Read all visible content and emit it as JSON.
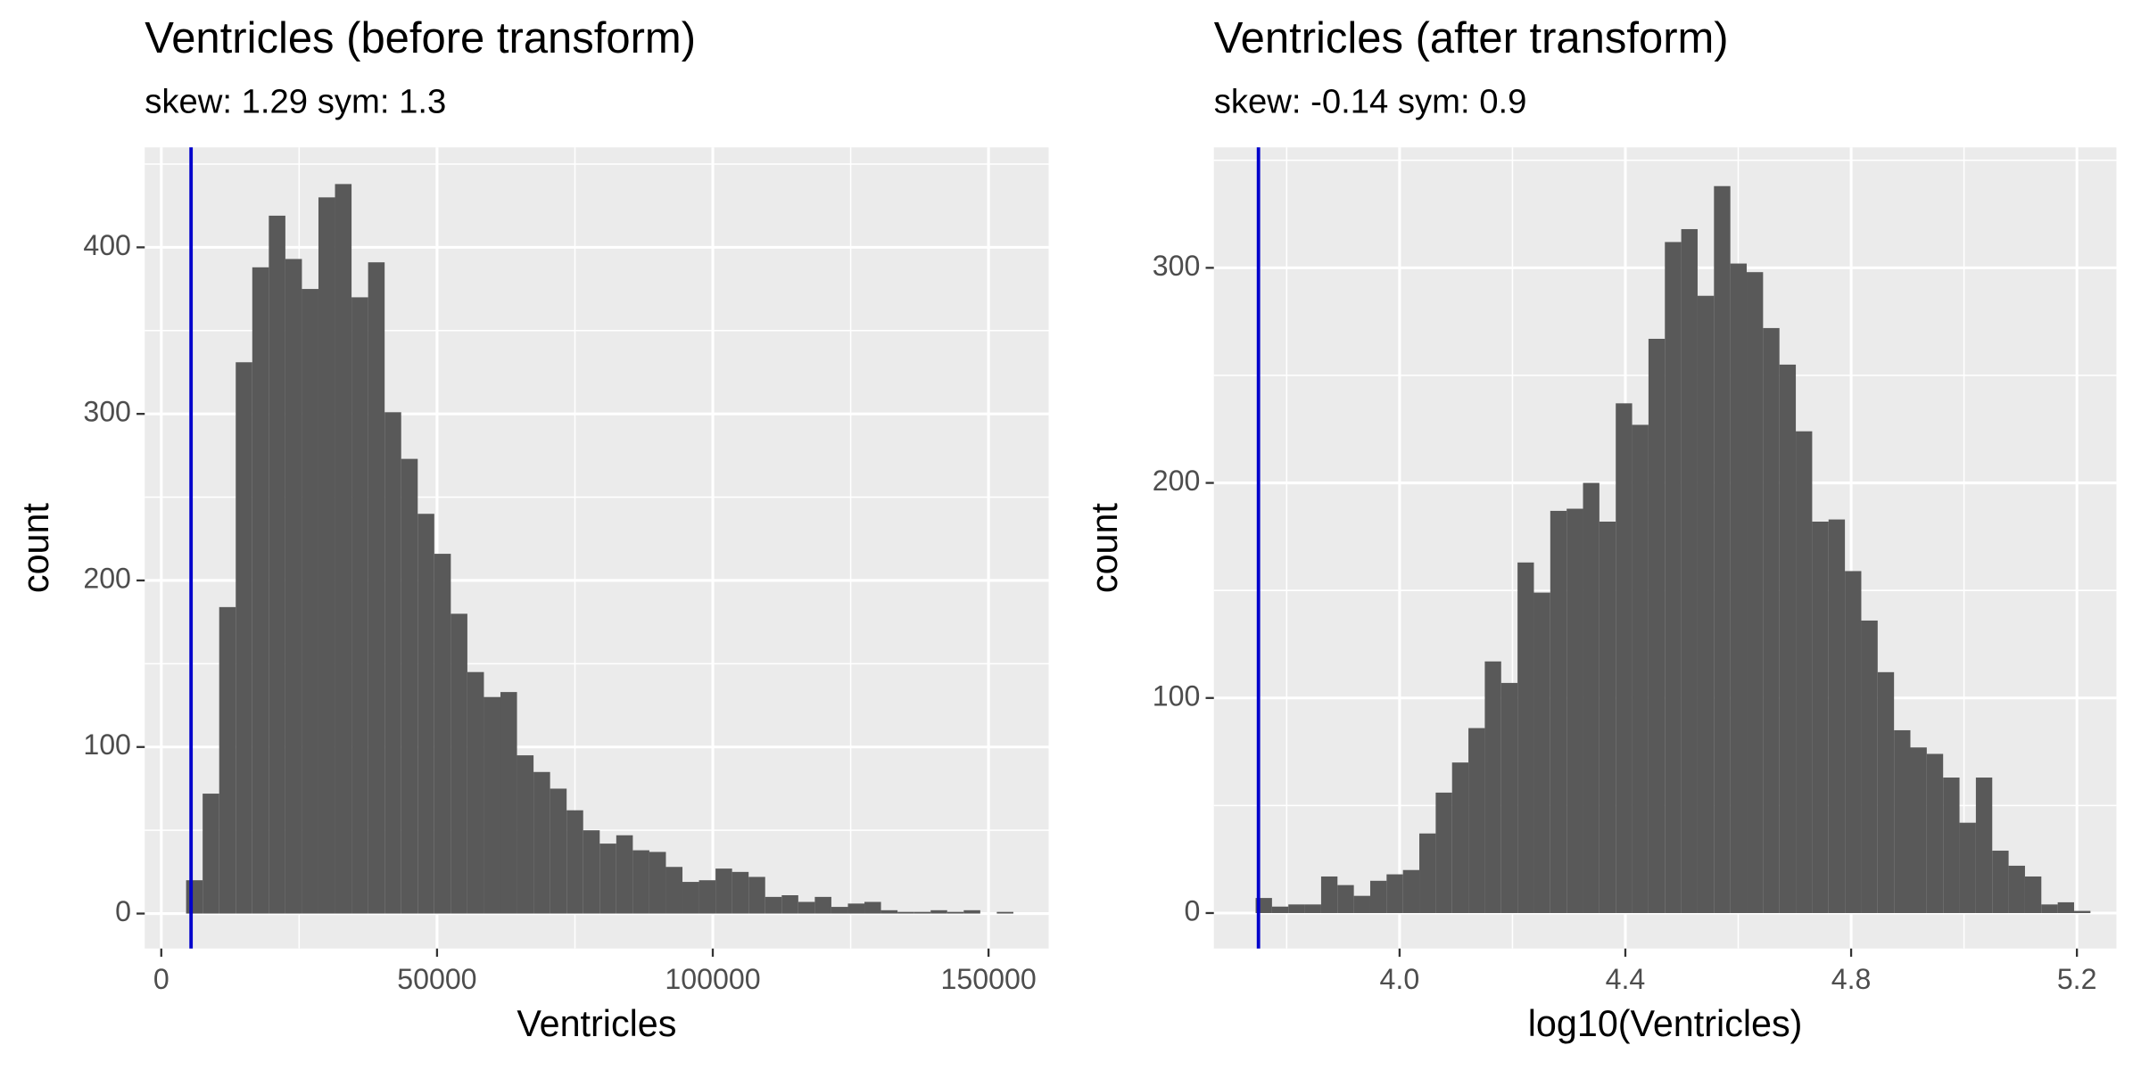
{
  "chart_data": [
    {
      "type": "histogram",
      "title": "Ventricles (before transform)",
      "subtitle": "skew: 1.29 sym: 1.3",
      "xlabel": "Ventricles",
      "ylabel": "count",
      "color": "#595959",
      "bins": [
        4500,
        7500,
        10500,
        13500,
        16500,
        19500,
        22500,
        25500,
        28500,
        31500,
        34500,
        37500,
        40500,
        43500,
        46500,
        49500,
        52500,
        55500,
        58500,
        61500,
        64500,
        67500,
        70500,
        73500,
        76500,
        79500,
        82500,
        85500,
        88500,
        91500,
        94500,
        97500,
        100500,
        103500,
        106500,
        109500,
        112500,
        115500,
        118500,
        121500,
        124500,
        127500,
        130500,
        133500,
        136500,
        139500,
        142500,
        145500,
        148500,
        151500,
        154500
      ],
      "counts": [
        20,
        72,
        184,
        331,
        388,
        419,
        393,
        375,
        430,
        438,
        370,
        391,
        301,
        273,
        240,
        216,
        180,
        145,
        130,
        133,
        95,
        85,
        75,
        62,
        50,
        42,
        47,
        38,
        37,
        28,
        19,
        20,
        27,
        25,
        22,
        10,
        11,
        7,
        10,
        4,
        6,
        7,
        2,
        1,
        1,
        2,
        1,
        2,
        0,
        1
      ],
      "vline": {
        "value": 5400,
        "color": "#0000cc"
      },
      "xlim": [
        -3000,
        160900
      ],
      "ylim": [
        -21,
        460
      ],
      "xticks": [
        0,
        50000,
        100000,
        150000
      ],
      "yticks": [
        0,
        100,
        200,
        300,
        400
      ],
      "grid": true
    },
    {
      "type": "histogram",
      "title": "Ventricles (after transform)",
      "subtitle": "skew: -0.14 sym: 0.9",
      "xlabel": "log10(Ventricles)",
      "ylabel": "count",
      "color": "#595959",
      "bins": [
        3.745,
        3.774,
        3.803,
        3.832,
        3.861,
        3.89,
        3.919,
        3.948,
        3.977,
        4.006,
        4.035,
        4.064,
        4.093,
        4.122,
        4.151,
        4.18,
        4.209,
        4.238,
        4.267,
        4.296,
        4.325,
        4.354,
        4.383,
        4.412,
        4.441,
        4.47,
        4.499,
        4.528,
        4.557,
        4.586,
        4.615,
        4.644,
        4.673,
        4.702,
        4.731,
        4.76,
        4.789,
        4.818,
        4.847,
        4.876,
        4.905,
        4.934,
        4.963,
        4.992,
        5.021,
        5.05,
        5.079,
        5.108,
        5.137,
        5.166,
        5.195,
        5.224
      ],
      "counts": [
        7,
        3,
        4,
        4,
        17,
        13,
        8,
        15,
        18,
        20,
        37,
        56,
        70,
        86,
        117,
        107,
        163,
        149,
        187,
        188,
        200,
        182,
        237,
        227,
        267,
        312,
        318,
        287,
        338,
        302,
        298,
        272,
        255,
        224,
        182,
        183,
        159,
        136,
        112,
        85,
        77,
        74,
        63,
        42,
        63,
        29,
        22,
        17,
        4,
        5,
        1
      ],
      "vline": {
        "value": 3.75,
        "color": "#0000cc"
      },
      "xlim": [
        3.671,
        5.27
      ],
      "ylim": [
        -16.5,
        356
      ],
      "xticks": [
        {
          "value": 4,
          "label": "4.0"
        },
        4.4,
        4.8,
        5.2
      ],
      "yticks": [
        0,
        100,
        200,
        300
      ],
      "grid": true
    }
  ]
}
